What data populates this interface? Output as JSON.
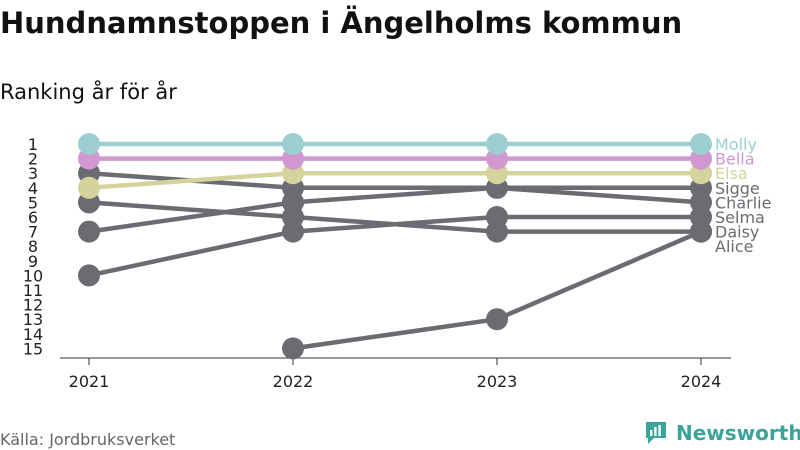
{
  "title": "Hundnamnstoppen i Ängelholms kommun",
  "subtitle": "Ranking år för år",
  "source": "Källa: Jordbruksverket",
  "brand": {
    "name": "Newsworthy",
    "color": "#3aa39a"
  },
  "chart_data": {
    "type": "line",
    "x": [
      "2021",
      "2022",
      "2023",
      "2024"
    ],
    "y_ticks": [
      1,
      2,
      3,
      4,
      5,
      6,
      7,
      8,
      9,
      10,
      11,
      12,
      13,
      14,
      15
    ],
    "ylim": [
      1,
      15
    ],
    "y_reversed": true,
    "series": [
      {
        "name": "Molly",
        "values": [
          1,
          1,
          1,
          1
        ],
        "color": "#9ccfcf"
      },
      {
        "name": "Bella",
        "values": [
          2,
          2,
          2,
          2
        ],
        "color": "#d197d1"
      },
      {
        "name": "Elsa",
        "values": [
          4,
          3,
          3,
          3
        ],
        "color": "#d4d39c"
      },
      {
        "name": "Sigge",
        "values": [
          3,
          4,
          4,
          4
        ],
        "color": "#6b6b72"
      },
      {
        "name": "Charlie",
        "values": [
          null,
          5,
          4,
          5
        ],
        "color": "#6b6b72"
      },
      {
        "name": "Selma",
        "values": [
          10,
          7,
          6,
          6
        ],
        "color": "#6b6b72"
      },
      {
        "name": "Daisy",
        "values": [
          5,
          6,
          7,
          7
        ],
        "color": "#6b6b72"
      },
      {
        "name": "Alice",
        "values": [
          null,
          15,
          13,
          7
        ],
        "color": "#6b6b72"
      },
      {
        "name": "",
        "values": [
          7,
          5,
          null,
          null
        ],
        "color": "#6b6b72"
      }
    ],
    "labels": [
      {
        "name": "Molly",
        "color": "#9ccfcf"
      },
      {
        "name": "Bella",
        "color": "#d197d1"
      },
      {
        "name": "Elsa",
        "color": "#d4d39c"
      },
      {
        "name": "Sigge",
        "color": "#6b6b72"
      },
      {
        "name": "Charlie",
        "color": "#6b6b72"
      },
      {
        "name": "Selma",
        "color": "#6b6b72"
      },
      {
        "name": "Daisy",
        "color": "#6b6b72"
      },
      {
        "name": "Alice",
        "color": "#6b6b72"
      }
    ]
  }
}
